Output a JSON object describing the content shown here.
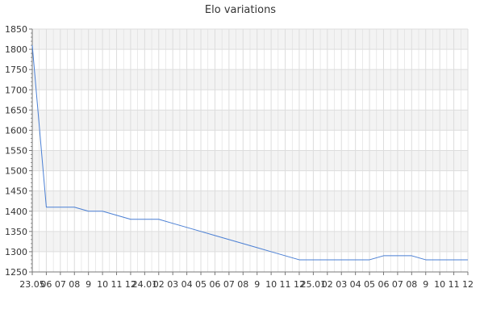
{
  "chart_data": {
    "type": "line",
    "title": "Elo variations",
    "xlabel": "",
    "ylabel": "",
    "ylim": [
      1250,
      1850
    ],
    "yticks": [
      1250,
      1300,
      1350,
      1400,
      1450,
      1500,
      1550,
      1600,
      1650,
      1700,
      1750,
      1800,
      1850
    ],
    "grid": true,
    "legend": "none",
    "colors": {
      "line": "#4a7fd4",
      "band_light": "#f3f3f3",
      "band_white": "#ffffff",
      "grid": "#dddddd",
      "axis": "#777777"
    },
    "xtick_labels": [
      "23.05",
      "06",
      "07",
      "08",
      "9",
      "10",
      "11",
      "12",
      "24.01",
      "02",
      "03",
      "04",
      "05",
      "06",
      "07",
      "08",
      "9",
      "10",
      "11",
      "12",
      "25.01",
      "02",
      "03",
      "04",
      "05",
      "06",
      "07",
      "08",
      "9",
      "10",
      "11",
      "12"
    ],
    "series": [
      {
        "values": [
          1810,
          1410,
          1410,
          1410,
          1400,
          1400,
          1390,
          1380,
          1380,
          1380,
          1370,
          1360,
          1350,
          1340,
          1330,
          1320,
          1310,
          1300,
          1290,
          1280,
          1280,
          1280,
          1280,
          1280,
          1280,
          1290,
          1290,
          1290,
          1280,
          1280,
          1280,
          1280
        ]
      }
    ]
  }
}
